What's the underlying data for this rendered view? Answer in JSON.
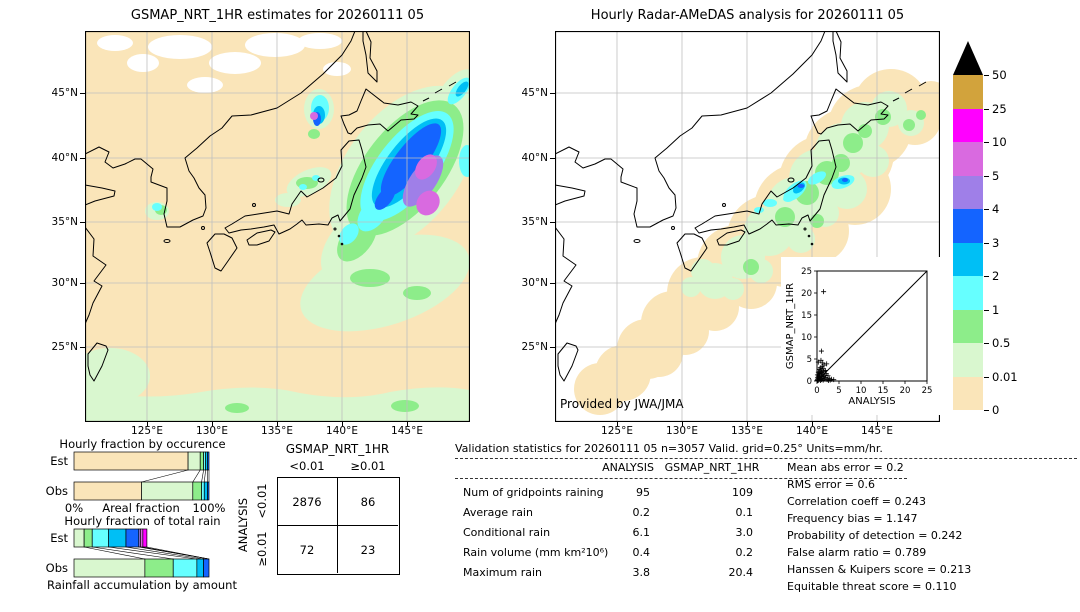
{
  "left_map": {
    "title": "GSMAP_NRT_1HR estimates for 20260111 05",
    "x_ticks": [
      "125°E",
      "130°E",
      "135°E",
      "140°E",
      "145°E"
    ],
    "y_ticks": [
      "45°N",
      "40°N",
      "35°N",
      "30°N",
      "25°N"
    ]
  },
  "right_map": {
    "title": "Hourly Radar-AMeDAS analysis for 20260111 05",
    "x_ticks": [
      "125°E",
      "130°E",
      "135°E",
      "140°E",
      "145°E"
    ],
    "y_ticks": [
      "45°N",
      "40°N",
      "35°N",
      "30°N",
      "25°N"
    ],
    "credit": "Provided by JWA/JMA"
  },
  "colorbar": {
    "unit_levels": [
      "50",
      "25",
      "10",
      "5",
      "4",
      "3",
      "2",
      "1",
      "0.5",
      "0.01",
      "0"
    ],
    "colors_top_to_bottom": [
      "#d2a33c",
      "#ff00ff",
      "#d96ae0",
      "#9f7fe8",
      "#1464ff",
      "#00bff5",
      "#66ffff",
      "#8ded8a",
      "#d9f7cf",
      "#fae5b9"
    ],
    "overflow_color": "#000000"
  },
  "contingency": {
    "col_group": "GSMAP_NRT_1HR",
    "row_group": "ANALYSIS",
    "col_labels": [
      "<0.01",
      "≥0.01"
    ],
    "row_labels": [
      "<0.01",
      "≥0.01"
    ],
    "values": [
      [
        2876,
        86
      ],
      [
        72,
        23
      ]
    ]
  },
  "stats": {
    "header": "Validation statistics for 20260111 05  n=3057 Valid. grid=0.25° Units=mm/hr.",
    "columns": [
      "ANALYSIS",
      "GSMAP_NRT_1HR"
    ],
    "rows": [
      {
        "label": "Num of gridpoints raining",
        "analysis": "95",
        "gsmap": "109"
      },
      {
        "label": "Average rain",
        "analysis": "0.2",
        "gsmap": "0.1"
      },
      {
        "label": "Conditional rain",
        "analysis": "6.1",
        "gsmap": "3.0"
      },
      {
        "label": "Rain volume (mm km²10⁶)",
        "analysis": "0.4",
        "gsmap": "0.2"
      },
      {
        "label": "Maximum rain",
        "analysis": "3.8",
        "gsmap": "20.4"
      }
    ],
    "metrics": [
      {
        "label": "Mean abs error",
        "value": "0.2"
      },
      {
        "label": "RMS error",
        "value": "0.6"
      },
      {
        "label": "Correlation coeff",
        "value": "0.243"
      },
      {
        "label": "Frequency bias",
        "value": "1.147"
      },
      {
        "label": "Probability of detection",
        "value": "0.242"
      },
      {
        "label": "False alarm ratio",
        "value": "0.789"
      },
      {
        "label": "Hanssen & Kuipers score",
        "value": "0.213"
      },
      {
        "label": "Equitable threat score",
        "value": "0.110"
      }
    ]
  },
  "chart_data": [
    {
      "id": "occurrence_fractions",
      "type": "bar",
      "title": "Hourly fraction by occurence",
      "xlabel": "Areal fraction",
      "x_ticks": [
        "0%",
        "100%"
      ],
      "categories": [
        "Est",
        "Obs"
      ],
      "stacked": true,
      "units": "percent of grid points per rain-rate class",
      "series": [
        {
          "name": "0-0.01 mm/hr",
          "color": "#fae5b9",
          "values": [
            84.5,
            50
          ]
        },
        {
          "name": "0.01-0.5",
          "color": "#d9f7cf",
          "values": [
            9,
            38
          ]
        },
        {
          "name": "0.5-1",
          "color": "#8ded8a",
          "values": [
            2.5,
            6.5
          ]
        },
        {
          "name": "1-2",
          "color": "#66ffff",
          "values": [
            1.5,
            2
          ]
        },
        {
          "name": "2-3",
          "color": "#00bff5",
          "values": [
            1.5,
            2.5
          ]
        },
        {
          "name": "3-4",
          "color": "#1464ff",
          "values": [
            1,
            1
          ]
        }
      ]
    },
    {
      "id": "total_rain_fractions",
      "type": "bar",
      "title": "Hourly fraction of total rain",
      "xlabel": "Rainfall accumulation by amount",
      "categories": [
        "Est",
        "Obs"
      ],
      "stacked": true,
      "units": "percent of total rain volume per rain-rate class",
      "series": [
        {
          "name": "0.01-0.5",
          "color": "#d9f7cf",
          "values": [
            7.5,
            52.5
          ]
        },
        {
          "name": "0.5-1",
          "color": "#8ded8a",
          "values": [
            6,
            21
          ]
        },
        {
          "name": "1-2",
          "color": "#66ffff",
          "values": [
            12,
            17.5
          ]
        },
        {
          "name": "2-3",
          "color": "#00bff5",
          "values": [
            13,
            5
          ]
        },
        {
          "name": "3-4",
          "color": "#1464ff",
          "values": [
            9.5,
            4
          ]
        },
        {
          "name": "4-5",
          "color": "#9f7fe8",
          "values": [
            1.2,
            0
          ]
        },
        {
          "name": "5-10",
          "color": "#d96ae0",
          "values": [
            1.8,
            0
          ]
        },
        {
          "name": "10-25",
          "color": "#ff00ff",
          "values": [
            3,
            0
          ]
        }
      ]
    },
    {
      "id": "inset_scatter",
      "type": "scatter",
      "xlabel": "ANALYSIS",
      "ylabel": "GSMAP_NRT_1HR",
      "xlim": [
        0,
        25
      ],
      "ylim": [
        0,
        25
      ],
      "x_ticks": [
        0,
        5,
        10,
        15,
        20,
        25
      ],
      "y_ticks": [
        0,
        5,
        10,
        15,
        20,
        25
      ],
      "diagonal_line": true,
      "marker": "+",
      "points": [
        [
          0.05,
          0.1
        ],
        [
          0.1,
          0.3
        ],
        [
          0.15,
          0.8
        ],
        [
          0.1,
          1.4
        ],
        [
          0.2,
          0.1
        ],
        [
          0.25,
          0.6
        ],
        [
          0.3,
          1.1
        ],
        [
          0.3,
          2.0
        ],
        [
          0.4,
          0.2
        ],
        [
          0.45,
          0.9
        ],
        [
          0.5,
          1.6
        ],
        [
          0.5,
          2.6
        ],
        [
          0.6,
          0.4
        ],
        [
          0.65,
          1.2
        ],
        [
          0.7,
          2.1
        ],
        [
          0.75,
          3.0
        ],
        [
          0.8,
          0.1
        ],
        [
          0.85,
          0.7
        ],
        [
          0.9,
          1.8
        ],
        [
          0.95,
          2.5
        ],
        [
          1.0,
          0.3
        ],
        [
          1.05,
          1.1
        ],
        [
          1.1,
          2.0
        ],
        [
          1.15,
          3.3
        ],
        [
          1.2,
          0.6
        ],
        [
          1.3,
          1.5
        ],
        [
          1.35,
          2.8
        ],
        [
          1.4,
          0.2
        ],
        [
          1.5,
          1.0
        ],
        [
          1.55,
          2.2
        ],
        [
          1.6,
          3.6
        ],
        [
          1.7,
          0.5
        ],
        [
          1.8,
          1.3
        ],
        [
          1.9,
          2.4
        ],
        [
          2.0,
          0.8
        ],
        [
          2.1,
          1.7
        ],
        [
          2.2,
          3.9
        ],
        [
          2.3,
          0.3
        ],
        [
          2.5,
          1.2
        ],
        [
          2.6,
          0.1
        ],
        [
          2.8,
          0.5
        ],
        [
          3.0,
          0.2
        ],
        [
          3.3,
          0.4
        ],
        [
          3.8,
          0.3
        ],
        [
          0.3,
          4.3
        ],
        [
          0.9,
          4.7
        ],
        [
          1.3,
          4.1
        ],
        [
          1.0,
          6.8
        ],
        [
          1.5,
          20.3
        ]
      ]
    },
    {
      "id": "contingency_table",
      "type": "table",
      "title": "ANALYSIS vs GSMAP_NRT_1HR contingency (threshold 0.01 mm/hr)",
      "columns": [
        "<0.01",
        "≥0.01"
      ],
      "rows": [
        "<0.01",
        "≥0.01"
      ],
      "values": [
        [
          2876,
          86
        ],
        [
          72,
          23
        ]
      ]
    },
    {
      "id": "gsmap_precip_map",
      "type": "heatmap",
      "title": "GSMAP_NRT_1HR estimates for 20260111 05",
      "x_ticks": [
        "125°E",
        "130°E",
        "135°E",
        "140°E",
        "145°E"
      ],
      "y_ticks": [
        "45°N",
        "40°N",
        "35°N",
        "30°N",
        "25°N"
      ],
      "legend_levels": [
        0,
        0.01,
        0.5,
        1,
        2,
        3,
        4,
        5,
        10,
        25,
        50
      ],
      "units": "mm/hr"
    },
    {
      "id": "radar_amedas_precip_map",
      "type": "heatmap",
      "title": "Hourly Radar-AMeDAS analysis for 20260111 05",
      "x_ticks": [
        "125°E",
        "130°E",
        "135°E",
        "140°E",
        "145°E"
      ],
      "y_ticks": [
        "45°N",
        "40°N",
        "35°N",
        "30°N",
        "25°N"
      ],
      "legend_levels": [
        0,
        0.01,
        0.5,
        1,
        2,
        3,
        4,
        5,
        10,
        25,
        50
      ],
      "units": "mm/hr"
    }
  ]
}
